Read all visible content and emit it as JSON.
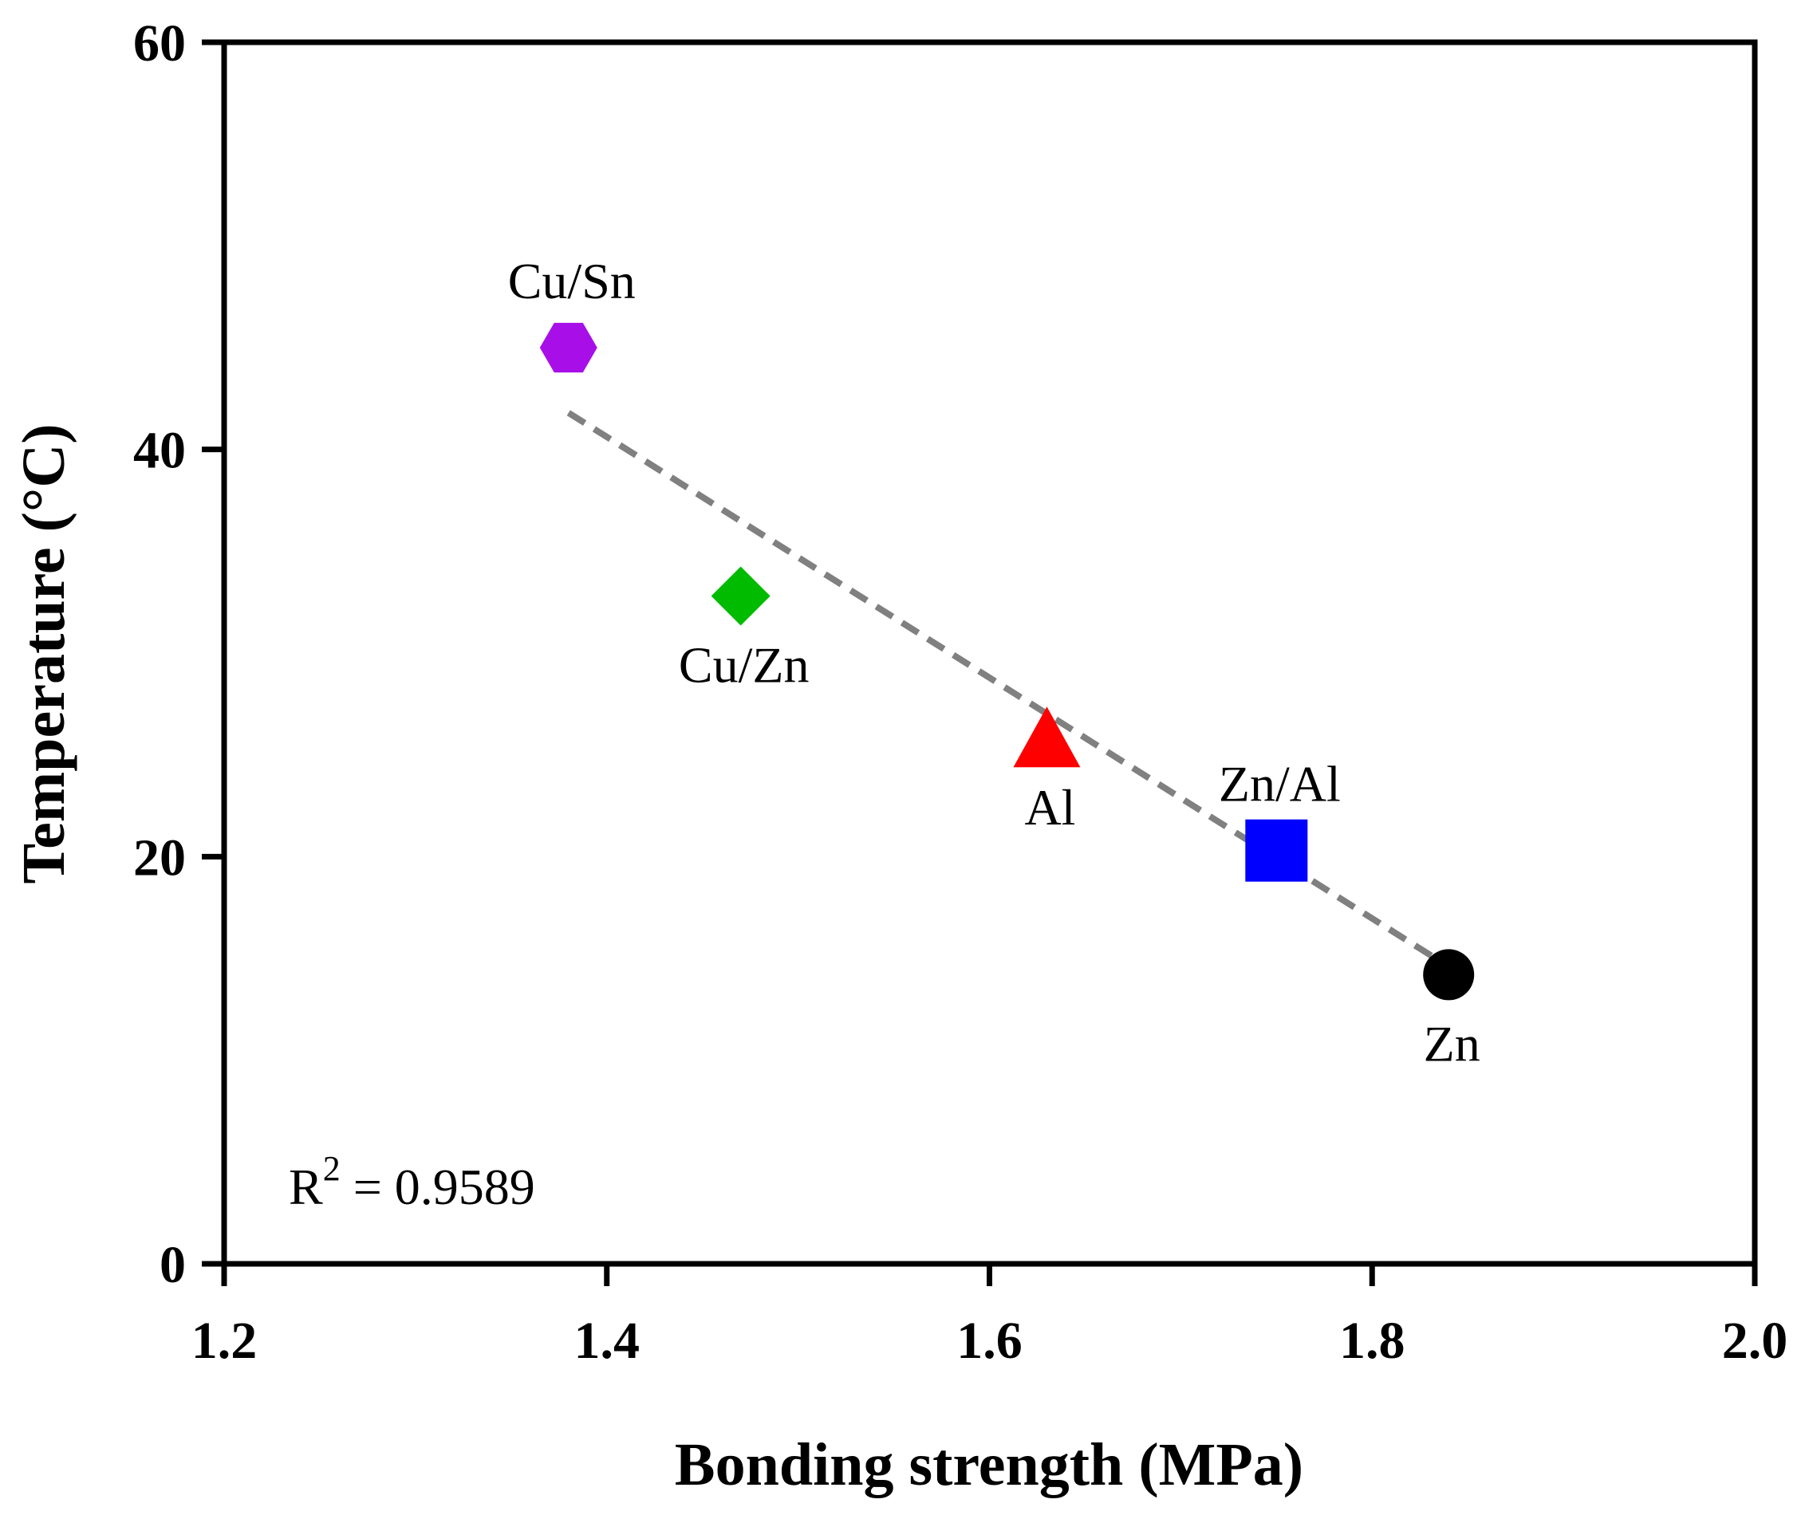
{
  "chart_data": {
    "type": "scatter",
    "title": "",
    "xlabel": "Bonding strength (MPa)",
    "ylabel": "Temperature (°C)",
    "xlim": [
      1.2,
      2.0
    ],
    "ylim": [
      0,
      60
    ],
    "xticks": [
      1.2,
      1.4,
      1.6,
      1.8,
      2.0
    ],
    "xtick_labels": [
      "1.2",
      "1.4",
      "1.6",
      "1.8",
      "2.0"
    ],
    "yticks": [
      0,
      20,
      40,
      60
    ],
    "ytick_labels": [
      "0",
      "20",
      "40",
      "60"
    ],
    "grid": false,
    "points": [
      {
        "name": "Cu/Sn",
        "x": 1.38,
        "y": 45.0,
        "marker": "hexagon",
        "color": "#A80FE8",
        "label_pos": "above"
      },
      {
        "name": "Cu/Zn",
        "x": 1.47,
        "y": 32.8,
        "marker": "diamond",
        "color": "#00BB00",
        "label_pos": "below"
      },
      {
        "name": "Al",
        "x": 1.63,
        "y": 25.8,
        "marker": "triangle",
        "color": "#FF0000",
        "label_pos": "below"
      },
      {
        "name": "Zn/Al",
        "x": 1.75,
        "y": 20.3,
        "marker": "square",
        "color": "#0000FF",
        "label_pos": "above"
      },
      {
        "name": "Zn",
        "x": 1.84,
        "y": 14.2,
        "marker": "circle",
        "color": "#000000",
        "label_pos": "below"
      }
    ],
    "fit_line": {
      "x": [
        1.38,
        1.84
      ],
      "y": [
        41.8,
        14.6
      ],
      "style": "dashed",
      "color": "#808080"
    },
    "annotation": {
      "label": "R",
      "superscript": "2",
      "text": " = 0.9589"
    }
  }
}
